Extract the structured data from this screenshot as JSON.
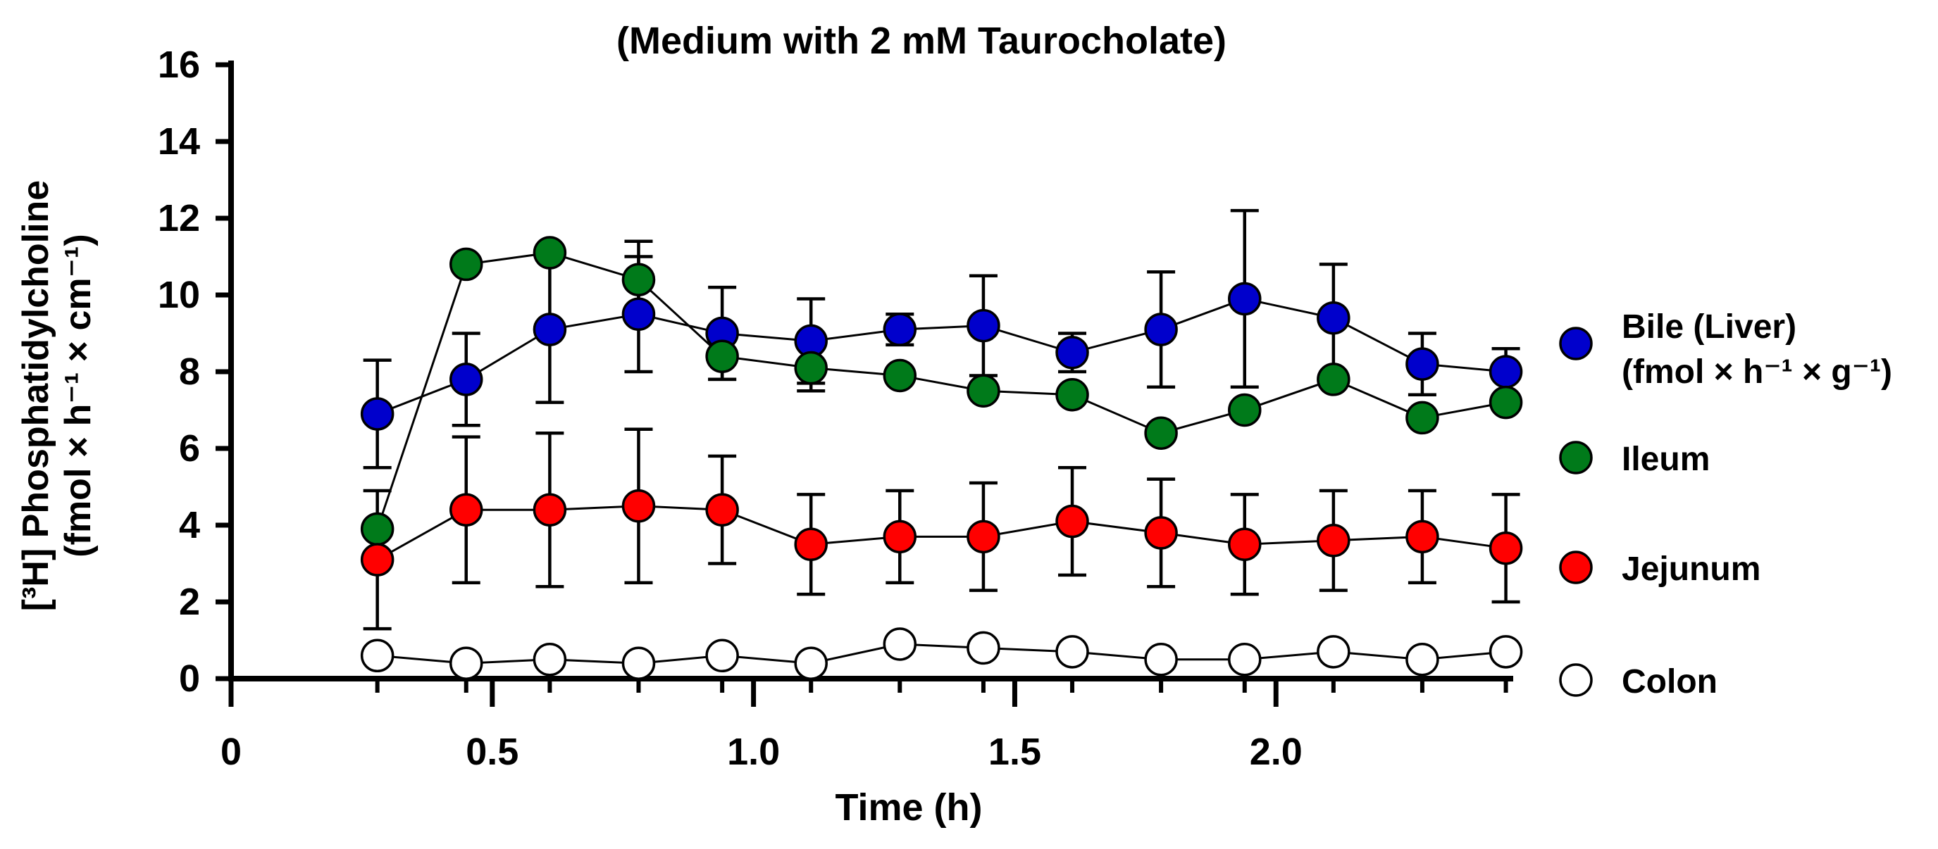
{
  "chart_data": {
    "type": "line",
    "title": "(Medium with 2 mM Taurocholate)",
    "xlabel": "Time (h)",
    "ylabel": {
      "line1": "[³H] Phosphatidylcholine",
      "line2": "(fmol × h⁻¹ × cm⁻¹)"
    },
    "xlim": [
      0,
      2.45
    ],
    "ylim": [
      0,
      16
    ],
    "x_ticks": [
      0,
      0.5,
      1.0,
      1.5,
      2.0
    ],
    "x_tick_labels": [
      "0",
      "0.5",
      "1.0",
      "1.5",
      "2.0"
    ],
    "y_ticks": [
      0,
      2,
      4,
      6,
      8,
      10,
      12,
      14,
      16
    ],
    "y_tick_labels": [
      "0",
      "2",
      "4",
      "6",
      "8",
      "10",
      "12",
      "14",
      "16"
    ],
    "legend_position": "right",
    "x": [
      0.28,
      0.45,
      0.61,
      0.78,
      0.94,
      1.11,
      1.28,
      1.44,
      1.61,
      1.78,
      1.94,
      2.11,
      2.28,
      2.44
    ],
    "series": [
      {
        "name": "Bile (Liver)",
        "name_line2": "(fmol × h⁻¹ × g⁻¹)",
        "color": "#0000cc",
        "values": [
          6.9,
          7.8,
          9.1,
          9.5,
          9.0,
          8.8,
          9.1,
          9.2,
          8.5,
          9.1,
          9.9,
          9.4,
          8.2,
          8.0
        ],
        "error": [
          1.4,
          1.2,
          1.9,
          1.5,
          1.2,
          1.1,
          0.4,
          1.3,
          0.5,
          1.5,
          2.3,
          1.4,
          0.8,
          0.6
        ]
      },
      {
        "name": "Ileum",
        "color": "#007a1a",
        "values": [
          3.9,
          10.8,
          11.1,
          10.4,
          8.4,
          8.1,
          7.9,
          7.5,
          7.4,
          6.4,
          7.0,
          7.8,
          6.8,
          7.2
        ],
        "error": [
          0,
          0,
          0,
          1.0,
          0.6,
          0.6,
          0,
          0,
          0,
          0,
          0,
          0,
          0,
          0
        ]
      },
      {
        "name": "Jejunum",
        "color": "#ff0000",
        "values": [
          3.1,
          4.4,
          4.4,
          4.5,
          4.4,
          3.5,
          3.7,
          3.7,
          4.1,
          3.8,
          3.5,
          3.6,
          3.7,
          3.4
        ],
        "error": [
          1.8,
          1.9,
          2.0,
          2.0,
          1.4,
          1.3,
          1.2,
          1.4,
          1.4,
          1.4,
          1.3,
          1.3,
          1.2,
          1.4
        ]
      },
      {
        "name": "Colon",
        "color": "#ffffff",
        "values": [
          0.6,
          0.4,
          0.5,
          0.4,
          0.6,
          0.4,
          0.9,
          0.8,
          0.7,
          0.5,
          0.5,
          0.7,
          0.5,
          0.7
        ],
        "error": [
          0,
          0,
          0,
          0,
          0,
          0,
          0,
          0,
          0,
          0,
          0,
          0,
          0,
          0
        ]
      }
    ]
  }
}
